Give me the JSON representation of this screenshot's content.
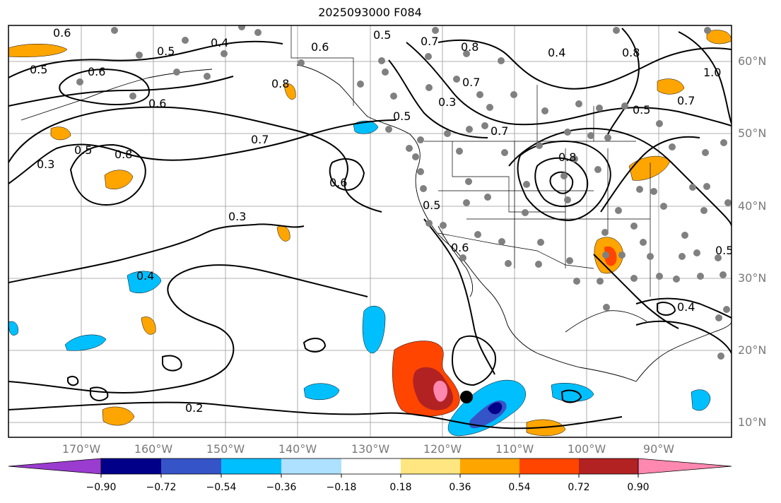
{
  "title": "2025093000 F084",
  "lat_labels": [
    "60°N",
    "50°N",
    "40°N",
    "30°N",
    "20°N",
    "10°N"
  ],
  "lon_labels": [
    "170°W",
    "160°W",
    "150°W",
    "140°W",
    "130°W",
    "120°W",
    "110°W",
    "100°W",
    "90°W"
  ],
  "colorbar": {
    "ticks": [
      "−0.90",
      "−0.72",
      "−0.54",
      "−0.36",
      "−0.18",
      "0.18",
      "0.36",
      "0.54",
      "0.72",
      "0.90"
    ],
    "colors": [
      "#9a3ccf",
      "#000088",
      "#3554c8",
      "#00bfff",
      "#aee0ff",
      "#ffffff",
      "#ffe680",
      "#ffa500",
      "#ff4500",
      "#b22222",
      "#ff88b0"
    ]
  },
  "contour_labels": [
    "0.6",
    "0.5",
    "0.6",
    "0.4",
    "0.5",
    "0.6",
    "0.8",
    "0.5",
    "0.6",
    "0.3",
    "0.5",
    "0.8",
    "0.7",
    "0.6",
    "0.3",
    "0.4",
    "0.2",
    "0.7",
    "0.8",
    "0.5",
    "0.6",
    "0.7",
    "0.8",
    "0.5",
    "0.7",
    "0.4",
    "0.8",
    "1.0",
    "0.7",
    "0.5",
    "0.3",
    "0.4",
    "0.5"
  ],
  "storm_marker": "tropical-cyclone-position"
}
